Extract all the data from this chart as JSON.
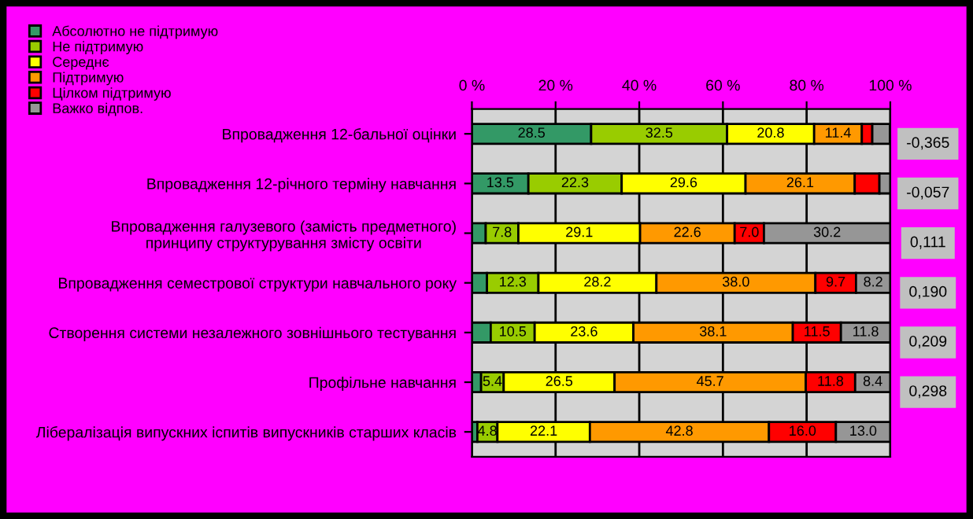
{
  "chart_data": {
    "type": "bar",
    "orientation": "horizontal",
    "stacked": true,
    "legend": "top left",
    "grid": "x",
    "categories": [
      "Впровадження 12-бальної оцінки",
      "Впровадження 12-річного терміну навчання",
      "Впровадження галузевого (замість предметного) принципу структурування змісту освіти",
      "Впровадження семестрової структури навчального року",
      "Створення системи незалежного зовнішнього тестування",
      "Профільне навчання",
      "Лібералізація випускних іспитів випускників старших класів"
    ],
    "series": [
      {
        "name": "Абсолютно не підтримую",
        "color": "#339966",
        "values": [
          28.5,
          13.5,
          3.3,
          3.6,
          4.5,
          2.2,
          1.3
        ],
        "value_labels": [
          "28.5",
          "13.5",
          null,
          null,
          null,
          null,
          null
        ]
      },
      {
        "name": "Не підтримую",
        "color": "#99cc00",
        "values": [
          32.5,
          22.3,
          7.8,
          12.3,
          10.5,
          5.4,
          4.8
        ],
        "value_labels": [
          "32.5",
          "22.3",
          "7.8",
          "12.3",
          "10.5",
          "5.4",
          "4.8"
        ]
      },
      {
        "name": "Середнє",
        "color": "#ffff00",
        "values": [
          20.8,
          29.6,
          29.1,
          28.2,
          23.6,
          26.5,
          22.1
        ],
        "value_labels": [
          "20.8",
          "29.6",
          "29.1",
          "28.2",
          "23.6",
          "26.5",
          "22.1"
        ]
      },
      {
        "name": "Підтримую",
        "color": "#ff9900",
        "values": [
          11.4,
          26.1,
          22.6,
          38.0,
          38.1,
          45.7,
          42.8
        ],
        "value_labels": [
          "11.4",
          "26.1",
          "22.6",
          "38.0",
          "38.1",
          "45.7",
          "42.8"
        ]
      },
      {
        "name": "Цілком підтримую",
        "color": "#ff0000",
        "values": [
          2.5,
          5.9,
          7.0,
          9.7,
          11.5,
          11.8,
          16.0
        ],
        "value_labels": [
          null,
          null,
          "7.0",
          "9.7",
          "11.5",
          "11.8",
          "16.0"
        ]
      },
      {
        "name": "Важко відпов.",
        "color": "#969696",
        "values": [
          4.2,
          2.6,
          30.2,
          8.2,
          11.8,
          8.4,
          13.0
        ],
        "value_labels": [
          null,
          null,
          "30.2",
          "8.2",
          "11.8",
          "8.4",
          "13.0"
        ]
      }
    ],
    "xlim": [
      0,
      100
    ],
    "xticks": [
      {
        "value": 0,
        "label": "0 %"
      },
      {
        "value": 20,
        "label": "20 %"
      },
      {
        "value": 40,
        "label": "40 %"
      },
      {
        "value": 60,
        "label": "60 %"
      },
      {
        "value": 80,
        "label": "80 %"
      },
      {
        "value": 100,
        "label": "100 %"
      }
    ],
    "annotations": [
      "-0,365",
      "-0,057",
      "0,111",
      "0,190",
      "0,209",
      "0,298"
    ]
  }
}
